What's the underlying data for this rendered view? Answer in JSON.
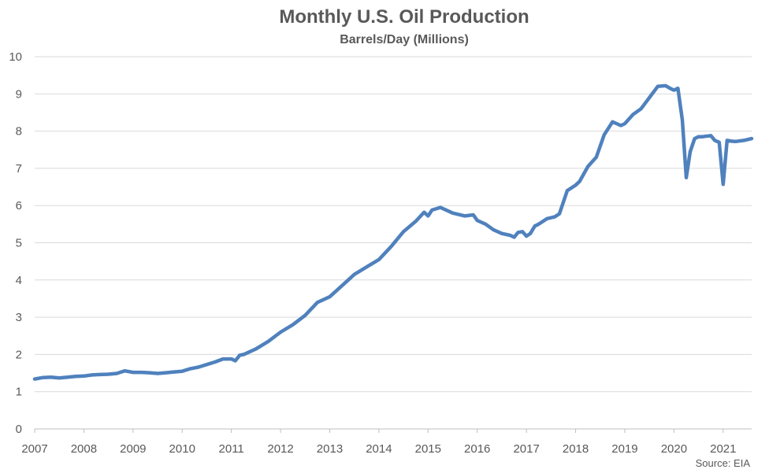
{
  "chart_data": {
    "type": "line",
    "title": "Monthly U.S. Oil Production",
    "subtitle": "Barrels/Day (Millions)",
    "source": "Source: EIA",
    "xlabel": "",
    "ylabel": "",
    "ylim": [
      0,
      10
    ],
    "xlim": [
      2007,
      2021.58
    ],
    "y_ticks": [
      "0",
      "1",
      "2",
      "3",
      "4",
      "5",
      "6",
      "7",
      "8",
      "9",
      "10"
    ],
    "x_ticks": [
      "2007",
      "2008",
      "2009",
      "2010",
      "2011",
      "2012",
      "2013",
      "2014",
      "2015",
      "2016",
      "2017",
      "2018",
      "2019",
      "2020",
      "2021"
    ],
    "grid": "horizontal",
    "legend": "none",
    "series": [
      {
        "color": "#4F81BD",
        "x": [
          2007.0,
          2007.17,
          2007.33,
          2007.5,
          2007.67,
          2007.83,
          2008.0,
          2008.17,
          2008.33,
          2008.5,
          2008.67,
          2008.83,
          2008.92,
          2009.0,
          2009.17,
          2009.33,
          2009.5,
          2009.67,
          2009.83,
          2010.0,
          2010.17,
          2010.33,
          2010.5,
          2010.67,
          2010.83,
          2011.0,
          2011.08,
          2011.17,
          2011.25,
          2011.5,
          2011.75,
          2012.0,
          2012.25,
          2012.5,
          2012.75,
          2013.0,
          2013.25,
          2013.5,
          2013.75,
          2014.0,
          2014.25,
          2014.5,
          2014.75,
          2014.92,
          2015.0,
          2015.08,
          2015.25,
          2015.5,
          2015.75,
          2015.92,
          2016.0,
          2016.17,
          2016.33,
          2016.5,
          2016.67,
          2016.75,
          2016.83,
          2016.92,
          2017.0,
          2017.08,
          2017.17,
          2017.25,
          2017.42,
          2017.58,
          2017.67,
          2017.83,
          2018.0,
          2018.08,
          2018.25,
          2018.42,
          2018.58,
          2018.75,
          2018.92,
          2019.0,
          2019.17,
          2019.33,
          2019.5,
          2019.67,
          2019.83,
          2019.92,
          2020.0,
          2020.08,
          2020.17,
          2020.25,
          2020.33,
          2020.42,
          2020.5,
          2020.58,
          2020.75,
          2020.83,
          2020.92,
          2021.0,
          2021.08,
          2021.17,
          2021.25,
          2021.42,
          2021.58
        ],
        "y": [
          1.34,
          1.38,
          1.39,
          1.37,
          1.39,
          1.41,
          1.42,
          1.45,
          1.46,
          1.47,
          1.49,
          1.56,
          1.54,
          1.52,
          1.52,
          1.51,
          1.49,
          1.51,
          1.53,
          1.55,
          1.62,
          1.66,
          1.73,
          1.8,
          1.88,
          1.88,
          1.83,
          1.98,
          2.0,
          2.15,
          2.35,
          2.6,
          2.8,
          3.05,
          3.4,
          3.55,
          3.85,
          4.15,
          4.35,
          4.55,
          4.9,
          5.3,
          5.58,
          5.82,
          5.72,
          5.88,
          5.95,
          5.8,
          5.72,
          5.75,
          5.6,
          5.5,
          5.35,
          5.25,
          5.2,
          5.15,
          5.28,
          5.3,
          5.18,
          5.25,
          5.45,
          5.5,
          5.65,
          5.7,
          5.78,
          6.4,
          6.55,
          6.65,
          7.05,
          7.3,
          7.9,
          8.25,
          8.15,
          8.2,
          8.45,
          8.6,
          8.9,
          9.2,
          9.22,
          9.15,
          9.1,
          9.15,
          8.3,
          6.75,
          7.45,
          7.8,
          7.85,
          7.85,
          7.88,
          7.75,
          7.7,
          6.57,
          7.75,
          7.73,
          7.72,
          7.75,
          7.8
        ]
      }
    ]
  }
}
